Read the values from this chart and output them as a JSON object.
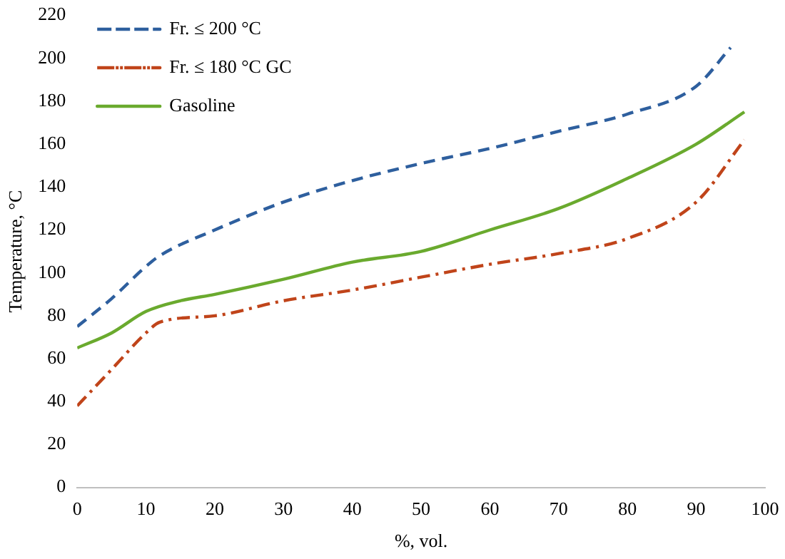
{
  "chart_data": {
    "type": "line",
    "xlabel": "%, vol.",
    "ylabel": "Temperature, °C",
    "xlim": [
      0,
      100
    ],
    "xticks": [
      0,
      10,
      20,
      30,
      40,
      50,
      60,
      70,
      80,
      90,
      100
    ],
    "ylim": [
      0,
      220
    ],
    "yticks": [
      0,
      20,
      40,
      60,
      80,
      100,
      120,
      140,
      160,
      180,
      200,
      220
    ],
    "grid": false,
    "legend": "top left",
    "marker": "none",
    "series": [
      {
        "name": "Fr. ≤ 200 °C",
        "color": "#2e5f9e",
        "line_style": "dashed",
        "x": [
          0,
          5,
          10,
          12,
          20,
          30,
          40,
          50,
          60,
          70,
          80,
          90,
          95
        ],
        "values": [
          75,
          88,
          103,
          108,
          120,
          133,
          143,
          151,
          158,
          166,
          174,
          187,
          205
        ]
      },
      {
        "name": "Fr. ≤ 180 °C GC",
        "color": "#c0441a",
        "line_style": "dashdot",
        "x": [
          0,
          5,
          10,
          12,
          20,
          30,
          40,
          50,
          60,
          70,
          80,
          90,
          97
        ],
        "values": [
          38,
          55,
          72,
          77,
          80,
          87,
          92,
          98,
          104,
          109,
          116,
          133,
          162
        ]
      },
      {
        "name": "Gasoline",
        "color": "#6aaa2e",
        "line_style": "solid",
        "x": [
          0,
          5,
          10,
          15,
          20,
          30,
          40,
          50,
          60,
          70,
          80,
          90,
          97
        ],
        "values": [
          65,
          72,
          82,
          87,
          90,
          97,
          105,
          110,
          120,
          130,
          144,
          160,
          175
        ]
      }
    ]
  }
}
